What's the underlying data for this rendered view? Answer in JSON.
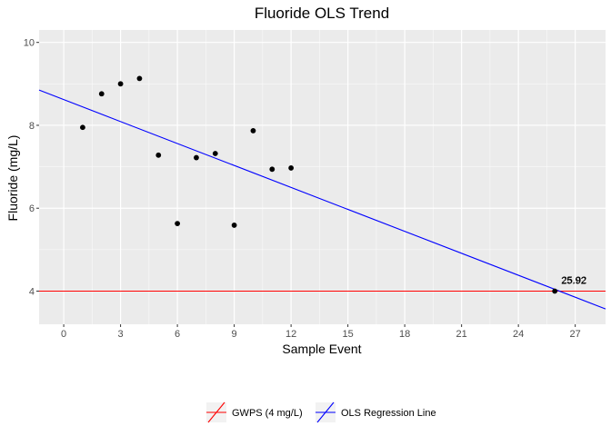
{
  "chart_data": {
    "type": "scatter",
    "title": "Fluoride OLS Trend",
    "xlabel": "Sample Event",
    "ylabel": "Fluoride (mg/L)",
    "xlim": [
      -1.3,
      28.6
    ],
    "ylim": [
      3.2,
      10.3
    ],
    "x_ticks": [
      0,
      3,
      6,
      9,
      12,
      15,
      18,
      21,
      24,
      27
    ],
    "y_ticks": [
      4,
      6,
      8,
      10
    ],
    "grid": true,
    "points": [
      {
        "x": 1,
        "y": 7.95
      },
      {
        "x": 2,
        "y": 8.76
      },
      {
        "x": 3,
        "y": 9.0
      },
      {
        "x": 4,
        "y": 9.13
      },
      {
        "x": 5,
        "y": 7.28
      },
      {
        "x": 6,
        "y": 5.63
      },
      {
        "x": 7,
        "y": 7.22
      },
      {
        "x": 8,
        "y": 7.32
      },
      {
        "x": 9,
        "y": 5.59
      },
      {
        "x": 10,
        "y": 7.87
      },
      {
        "x": 11,
        "y": 6.94
      },
      {
        "x": 12,
        "y": 6.97
      },
      {
        "x": 25.92,
        "y": 4.0
      }
    ],
    "gwps": {
      "name": "GWPS (4 mg/L)",
      "y": 4,
      "color": "#ff0000"
    },
    "ols": {
      "name": "OLS Regression Line",
      "x0": -1.3,
      "y0": 8.85,
      "x1": 28.6,
      "y1": 3.57,
      "color": "#0000ff"
    },
    "annotation": {
      "x": 25.92,
      "y": 4.0,
      "text": "25.92"
    },
    "legend_position": "bottom"
  }
}
